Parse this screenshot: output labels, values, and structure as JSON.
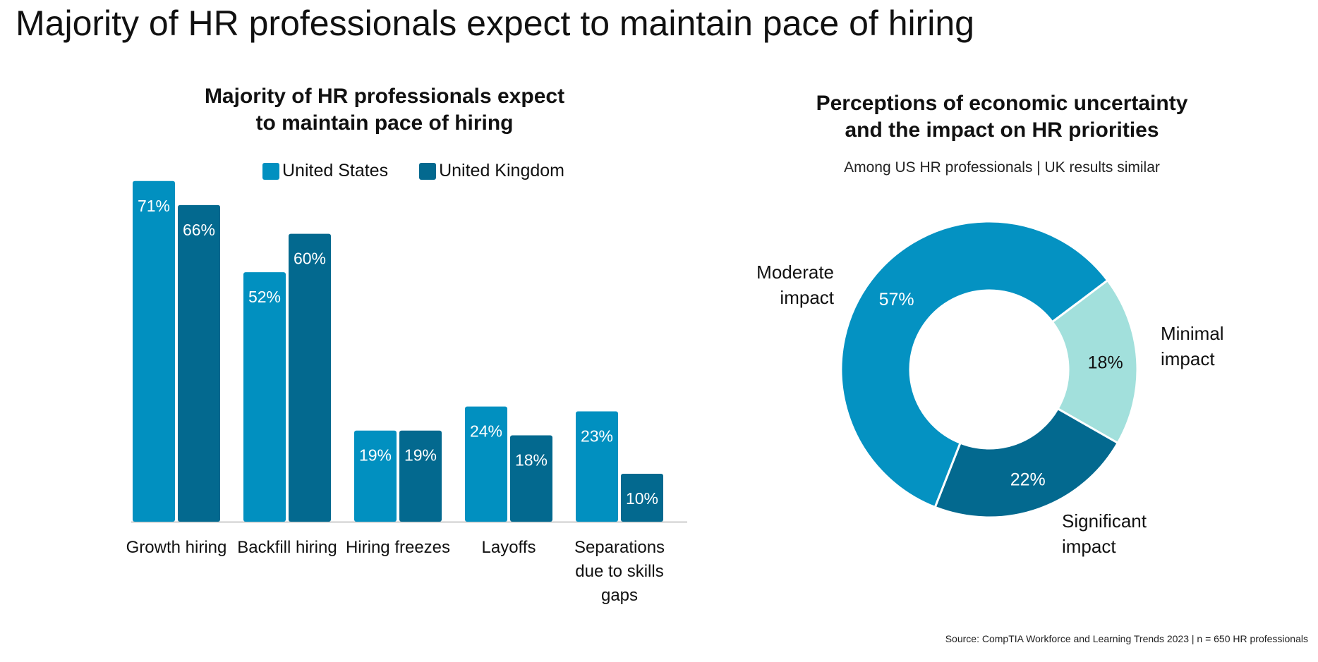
{
  "page": {
    "title": "Majority of HR professionals expect to maintain pace of hiring",
    "source": "Source: CompTIA Workforce and Learning Trends 2023 | n = 650 HR professionals"
  },
  "colors": {
    "us": "#0190c0",
    "uk": "#03698f",
    "moderate": "#0492c2",
    "minimal": "#a2e0dc",
    "significant": "#03698f"
  },
  "chart_data": [
    {
      "type": "bar",
      "title_lines": [
        "Majority of HR professionals expect",
        "to maintain pace of hiring"
      ],
      "categories": [
        [
          "Growth hiring"
        ],
        [
          "Backfill hiring"
        ],
        [
          "Hiring freezes"
        ],
        [
          "Layoffs"
        ],
        [
          "Separations",
          "due to skills",
          "gaps"
        ]
      ],
      "series": [
        {
          "name": "United States",
          "values": [
            71,
            52,
            19,
            24,
            23
          ],
          "labels": [
            "71%",
            "52%",
            "19%",
            "24%",
            "23%"
          ]
        },
        {
          "name": "United Kingdom",
          "values": [
            66,
            60,
            19,
            18,
            10
          ],
          "labels": [
            "66%",
            "60%",
            "19%",
            "18%",
            "10%"
          ]
        }
      ],
      "ylim": [
        0,
        72
      ],
      "grid": false,
      "legend": "top"
    },
    {
      "type": "pie",
      "style": "donut",
      "title_lines": [
        "Perceptions of economic uncertainty",
        "and the impact on HR priorities"
      ],
      "subtitle": "Among US HR professionals | UK results similar",
      "slices": [
        {
          "category_lines": [
            "Minimal",
            "impact"
          ],
          "value": 18,
          "label": "18%"
        },
        {
          "category_lines": [
            "Significant",
            "impact"
          ],
          "value": 22,
          "label": "22%"
        },
        {
          "category_lines": [
            "Moderate",
            "impact"
          ],
          "value": 57,
          "label": "57%"
        }
      ]
    }
  ]
}
